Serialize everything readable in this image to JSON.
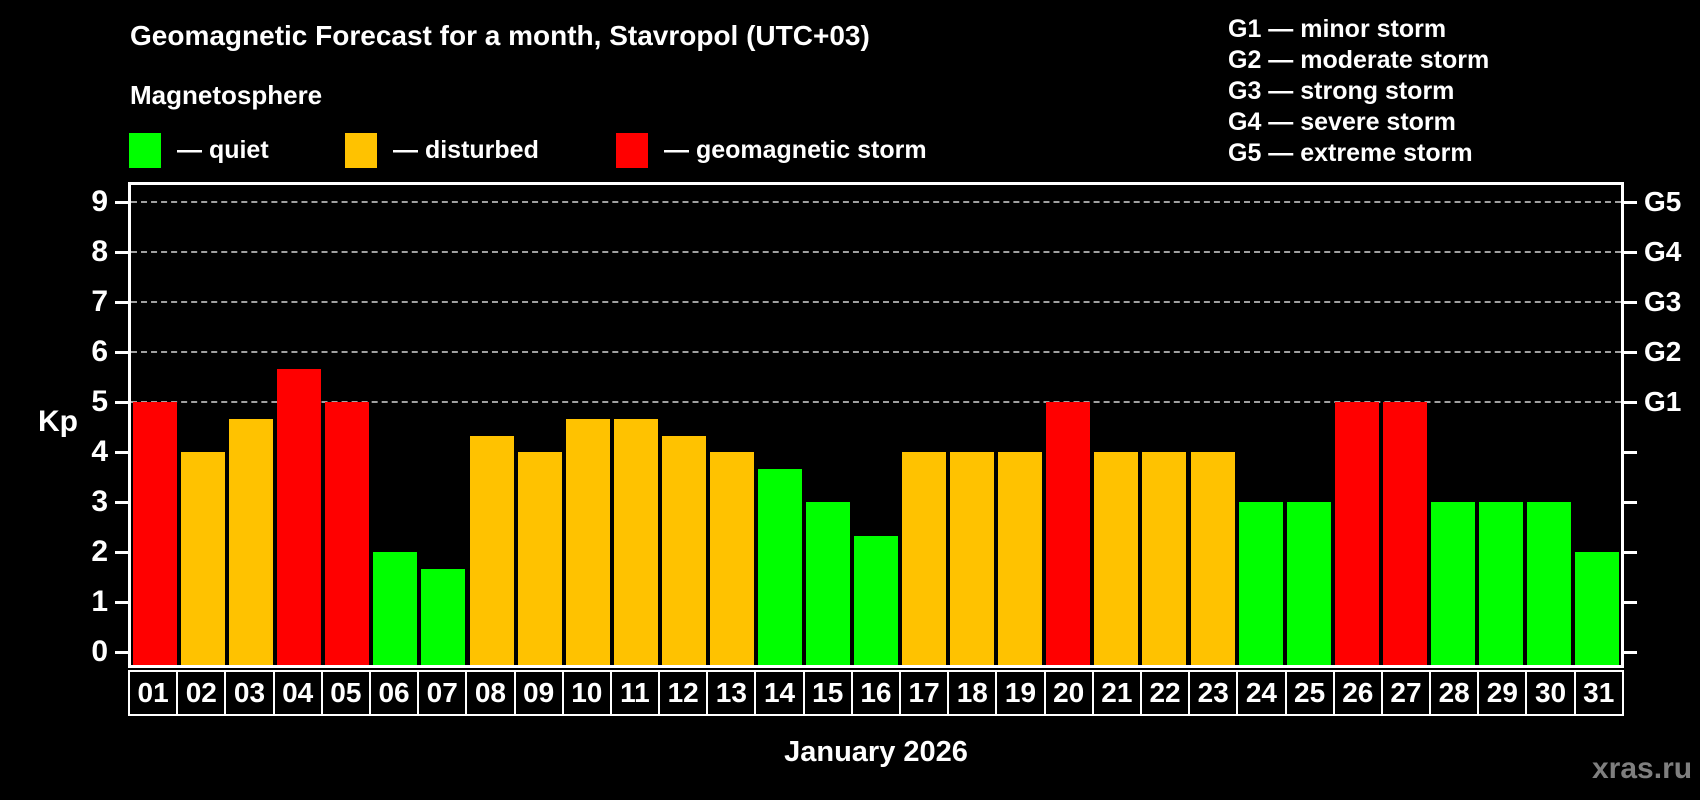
{
  "header": {
    "title": "Geomagnetic Forecast for a month, Stavropol (UTC+03)",
    "subtitle": "Magnetosphere"
  },
  "legend": {
    "items": [
      {
        "key": "quiet",
        "label": "— quiet",
        "color": "#00ff00"
      },
      {
        "key": "disturbed",
        "label": "— disturbed",
        "color": "#ffc200"
      },
      {
        "key": "storm",
        "label": "— geomagnetic storm",
        "color": "#ff0000"
      }
    ]
  },
  "g_scale_legend": {
    "items": [
      {
        "label": "G1 — minor storm"
      },
      {
        "label": "G2 — moderate storm"
      },
      {
        "label": "G3 — strong storm"
      },
      {
        "label": "G4 — severe storm"
      },
      {
        "label": "G5 — extreme storm"
      }
    ]
  },
  "watermark": "xras.ru",
  "chart_data": {
    "type": "bar",
    "title": "Geomagnetic Forecast for a month, Stavropol (UTC+03)",
    "xlabel": "January 2026",
    "ylabel": "Kp",
    "ylim": [
      0,
      9
    ],
    "categories": [
      "01",
      "02",
      "03",
      "04",
      "05",
      "06",
      "07",
      "08",
      "09",
      "10",
      "11",
      "12",
      "13",
      "14",
      "15",
      "16",
      "17",
      "18",
      "19",
      "20",
      "21",
      "22",
      "23",
      "24",
      "25",
      "26",
      "27",
      "28",
      "29",
      "30",
      "31"
    ],
    "values": [
      5,
      4,
      4.67,
      5.67,
      5,
      2,
      1.67,
      4.33,
      4,
      4.67,
      4.67,
      4.33,
      4,
      3.67,
      3,
      2.33,
      4,
      4,
      4,
      5,
      4,
      4,
      4,
      3,
      3,
      5,
      5,
      3,
      3,
      3,
      2
    ],
    "statuses": [
      "storm",
      "disturbed",
      "disturbed",
      "storm",
      "storm",
      "quiet",
      "quiet",
      "disturbed",
      "disturbed",
      "disturbed",
      "disturbed",
      "disturbed",
      "disturbed",
      "quiet",
      "quiet",
      "quiet",
      "disturbed",
      "disturbed",
      "disturbed",
      "storm",
      "disturbed",
      "disturbed",
      "disturbed",
      "quiet",
      "quiet",
      "storm",
      "storm",
      "quiet",
      "quiet",
      "quiet",
      "quiet"
    ],
    "status_colors": {
      "quiet": "#00ff00",
      "disturbed": "#ffc200",
      "storm": "#ff0000"
    },
    "y_ticks": [
      0,
      1,
      2,
      3,
      4,
      5,
      6,
      7,
      8,
      9
    ],
    "gridlines_at": [
      5,
      6,
      7,
      8,
      9
    ],
    "grid_style": "dashed",
    "background": "#000000",
    "right_axis": {
      "ticks": [
        0,
        1,
        2,
        3,
        4,
        5,
        6,
        7,
        8,
        9
      ],
      "labels": [
        {
          "value": 5,
          "label": "G1"
        },
        {
          "value": 6,
          "label": "G2"
        },
        {
          "value": 7,
          "label": "G3"
        },
        {
          "value": 8,
          "label": "G4"
        },
        {
          "value": 9,
          "label": "G5"
        }
      ]
    },
    "legend_position": "top-left"
  }
}
